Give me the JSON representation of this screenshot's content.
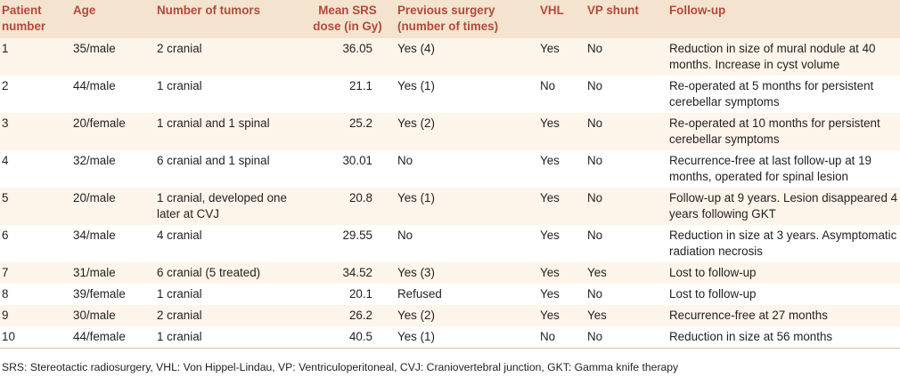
{
  "columns": [
    "Patient number",
    "Age",
    "Number of tumors",
    "Mean SRS dose (in Gy)",
    "Previous surgery (number of times)",
    "VHL",
    "VP shunt",
    "Follow-up"
  ],
  "rows": [
    [
      "1",
      "35/male",
      "2 cranial",
      "36.05",
      "Yes (4)",
      "Yes",
      "No",
      "Reduction in size of mural nodule at 40 months. Increase in cyst volume"
    ],
    [
      "2",
      "44/male",
      "1 cranial",
      "21.1",
      "Yes (1)",
      "No",
      "No",
      "Re-operated at 5 months for persistent cerebellar symptoms"
    ],
    [
      "3",
      "20/female",
      "1 cranial and 1 spinal",
      "25.2",
      "Yes (2)",
      "Yes",
      "No",
      "Re-operated at 10 months for persistent cerebellar symptoms"
    ],
    [
      "4",
      "32/male",
      "6 cranial and 1 spinal",
      "30.01",
      "No",
      "Yes",
      "No",
      "Recurrence-free at last follow-up at 19 months, operated for spinal lesion"
    ],
    [
      "5",
      "20/male",
      "1 cranial, developed one later at CVJ",
      "20.8",
      "Yes (1)",
      "Yes",
      "No",
      "Follow-up at 9 years. Lesion disappeared 4 years following GKT"
    ],
    [
      "6",
      "34/male",
      "4 cranial",
      "29.55",
      "No",
      "Yes",
      "No",
      "Reduction in size at 3 years. Asymptomatic radiation necrosis"
    ],
    [
      "7",
      "31/male",
      "6 cranial (5 treated)",
      "34.52",
      "Yes (3)",
      "Yes",
      "Yes",
      "Lost to follow-up"
    ],
    [
      "8",
      "39/female",
      "1 cranial",
      "20.1",
      "Refused",
      "Yes",
      "No",
      "Lost to follow-up"
    ],
    [
      "9",
      "30/male",
      "2 cranial",
      "26.2",
      "Yes (2)",
      "Yes",
      "Yes",
      "Recurrence-free at 27 months"
    ],
    [
      "10",
      "44/female",
      "1 cranial",
      "40.5",
      "Yes (1)",
      "No",
      "No",
      "Reduction in size at 56 months"
    ]
  ],
  "footnote": "SRS: Stereotactic radiosurgery, VHL: Von Hippel-Lindau, VP: Ventriculoperitoneal, CVJ: Craniovertebral junction, GKT: Gamma knife therapy",
  "colors": {
    "header_bg": "#f3e3cf",
    "header_text": "#b04a3c",
    "row_alt_bg": "#fdf5ea"
  }
}
